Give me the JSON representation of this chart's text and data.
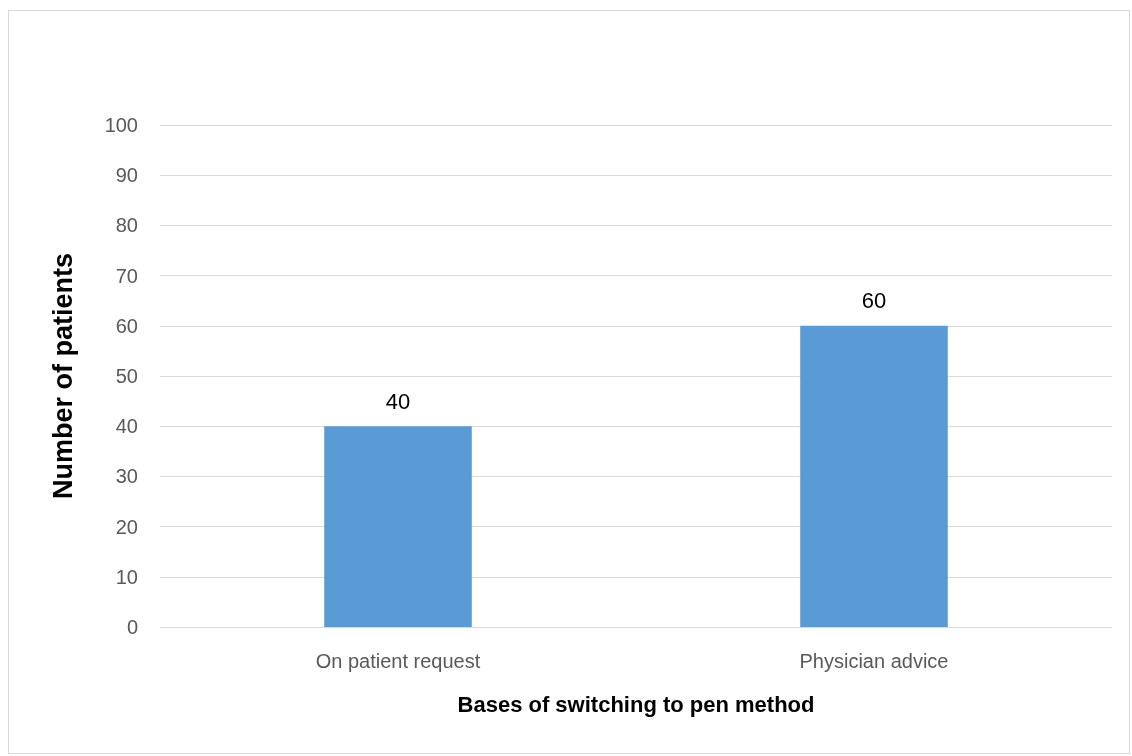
{
  "chart_data": {
    "type": "bar",
    "xlabel": "Bases of switching to pen method",
    "ylabel": "Number of patients",
    "categories": [
      "On patient request",
      "Physician advice"
    ],
    "values": [
      40,
      60
    ],
    "color": "#5b9bd5",
    "ylim": [
      0,
      100
    ],
    "yticks": [
      0,
      10,
      20,
      30,
      40,
      50,
      60,
      70,
      80,
      90,
      100
    ],
    "grid": "y",
    "data_labels": true
  }
}
